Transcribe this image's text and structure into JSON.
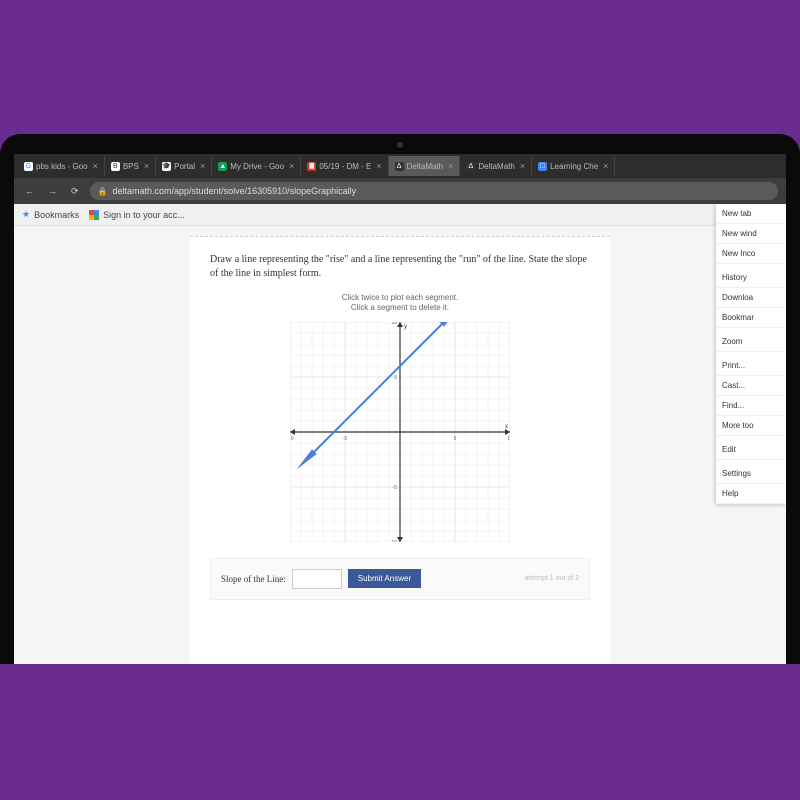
{
  "background_color": "#6b2c8f",
  "tabs": [
    {
      "label": "pbs kids - Goo",
      "icon_bg": "#fff",
      "icon_text": "G",
      "icon_color": "#4285f4"
    },
    {
      "label": "BPS",
      "icon_bg": "#fff",
      "icon_text": "B",
      "icon_color": "#333"
    },
    {
      "label": "Portal",
      "icon_bg": "#fff",
      "icon_text": "🎓",
      "icon_color": "#333"
    },
    {
      "label": "My Drive - Goo",
      "icon_bg": "#0f9d58",
      "icon_text": "▲",
      "icon_color": "#fff"
    },
    {
      "label": "05/19 - DM - E",
      "icon_bg": "#d93025",
      "icon_text": "📋",
      "icon_color": "#fff"
    },
    {
      "label": "DeltaMath",
      "icon_bg": "#333",
      "icon_text": "Δ",
      "icon_color": "#fff",
      "active": true
    },
    {
      "label": "DeltaMath",
      "icon_bg": "#333",
      "icon_text": "Δ",
      "icon_color": "#fff"
    },
    {
      "label": "Learning Che",
      "icon_bg": "#4285f4",
      "icon_text": "□",
      "icon_color": "#fff"
    }
  ],
  "url": "deltamath.com/app/student/solve/16305910/slopeGraphically",
  "bookmarks": {
    "star_label": "Bookmarks",
    "signin_label": "Sign in to your acc..."
  },
  "problem": {
    "instruction": "Draw a line representing the \"rise\" and a line representing the \"run\" of the line. State the slope of the line in simplest form.",
    "hint1": "Click twice to plot each segment.",
    "hint2": "Click a segment to delete it.",
    "answer_label": "Slope of the Line:",
    "submit_label": "Submit Answer",
    "attempt_label": "attempt 1 out of 2"
  },
  "chart": {
    "type": "line",
    "xlim": [
      -10,
      10
    ],
    "ylim": [
      -10,
      10
    ],
    "grid_step": 1,
    "major_step": 5,
    "grid_color": "#e8e8e8",
    "major_grid_color": "#d0d0d0",
    "axis_color": "#333",
    "line_color": "#4a7fd8",
    "line_width": 2,
    "arrow_color": "#4a7fd8",
    "line_points": [
      [
        -8,
        -2
      ],
      [
        4,
        10
      ]
    ],
    "x_label": "x",
    "y_label": "y",
    "svg_size": 220
  },
  "context_menu": [
    "New tab",
    "New wind",
    "New Inco",
    "",
    "History",
    "Downloa",
    "Bookmar",
    "",
    "Zoom",
    "",
    "Print...",
    "Cast...",
    "Find...",
    "More too",
    "",
    "Edit",
    "",
    "Settings",
    "Help"
  ]
}
